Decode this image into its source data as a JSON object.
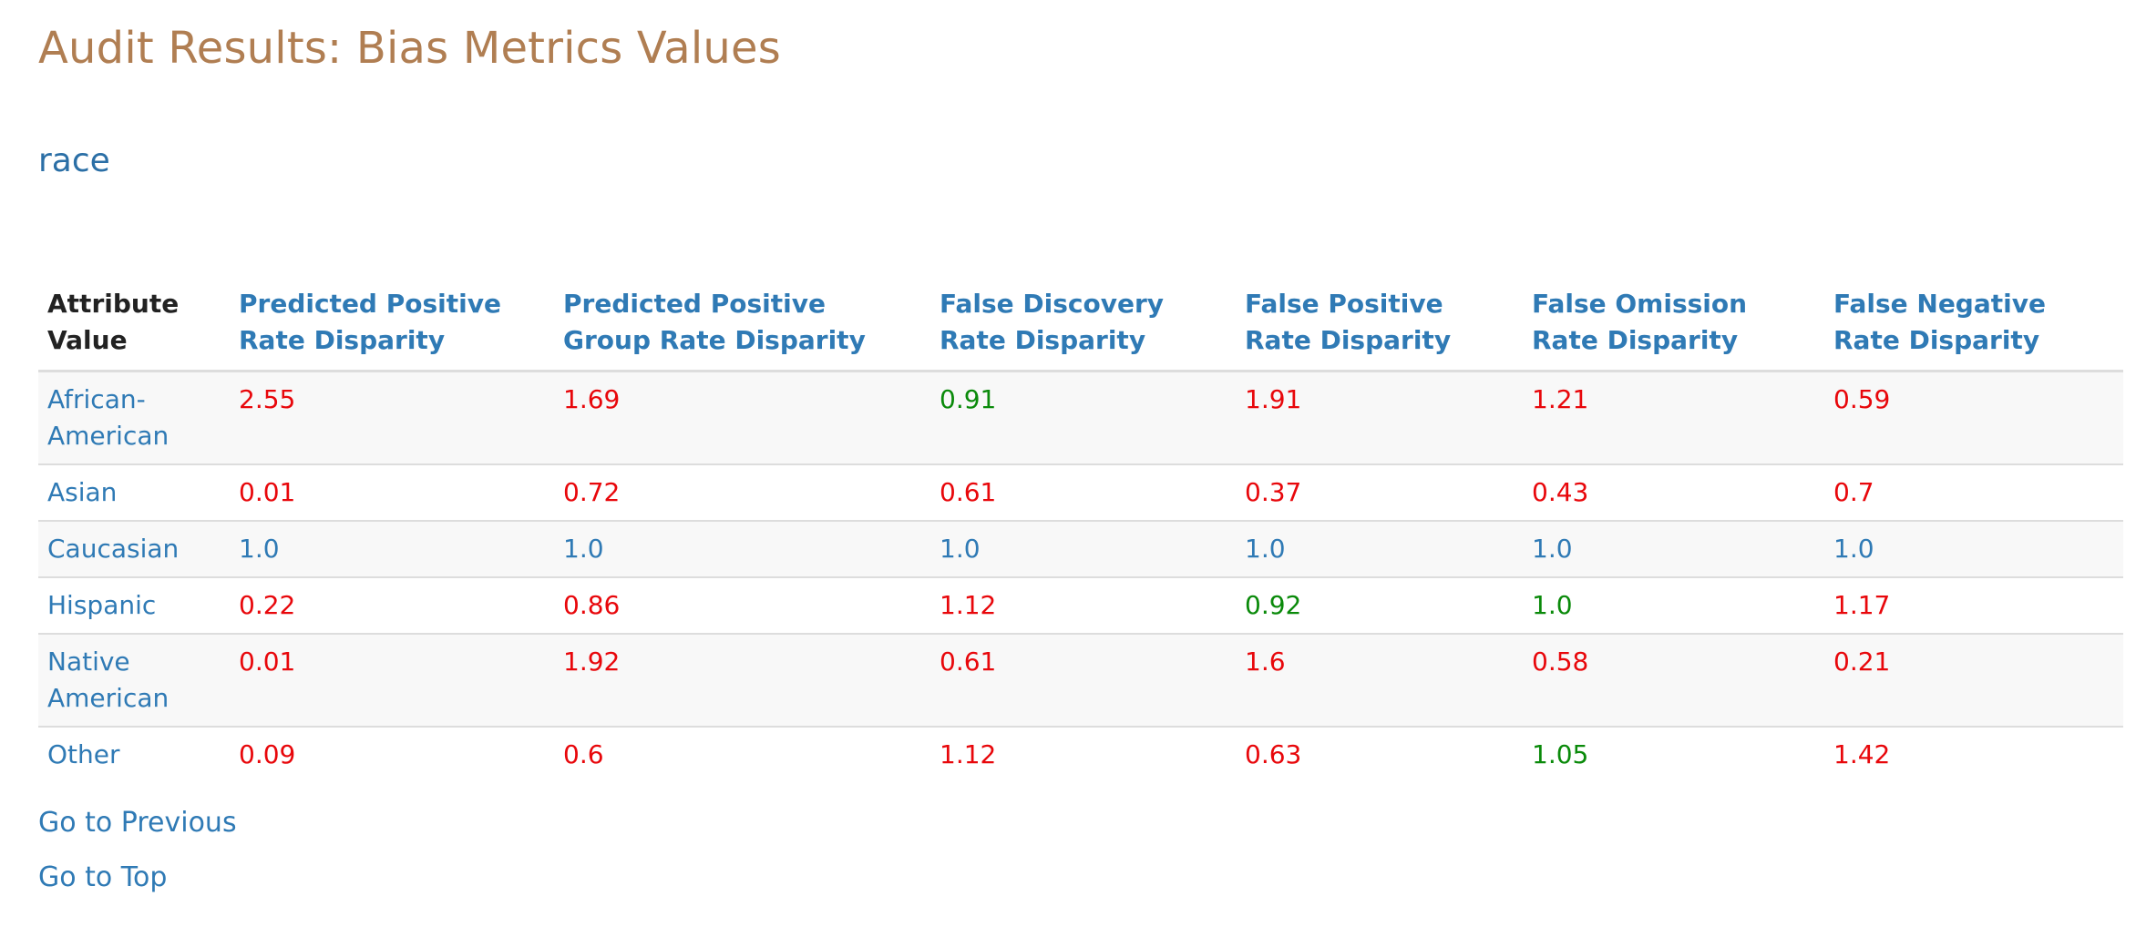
{
  "page": {
    "title": "Audit Results: Bias Metrics Values",
    "section": "race"
  },
  "table": {
    "headers": [
      "Attribute Value",
      "Predicted Positive Rate Disparity",
      "Predicted Positive Group Rate Disparity",
      "False Discovery Rate Disparity",
      "False Positive Rate Disparity",
      "False Omission Rate Disparity",
      "False Negative Rate Disparity"
    ],
    "rows": [
      {
        "attribute": "African-American",
        "values": [
          "2.55",
          "1.69",
          "0.91",
          "1.91",
          "1.21",
          "0.59"
        ],
        "status": [
          "red",
          "red",
          "green",
          "red",
          "red",
          "red"
        ]
      },
      {
        "attribute": "Asian",
        "values": [
          "0.01",
          "0.72",
          "0.61",
          "0.37",
          "0.43",
          "0.7"
        ],
        "status": [
          "red",
          "red",
          "red",
          "red",
          "red",
          "red"
        ]
      },
      {
        "attribute": "Caucasian",
        "values": [
          "1.0",
          "1.0",
          "1.0",
          "1.0",
          "1.0",
          "1.0"
        ],
        "status": [
          "blue",
          "blue",
          "blue",
          "blue",
          "blue",
          "blue"
        ]
      },
      {
        "attribute": "Hispanic",
        "values": [
          "0.22",
          "0.86",
          "1.12",
          "0.92",
          "1.0",
          "1.17"
        ],
        "status": [
          "red",
          "red",
          "red",
          "green",
          "green",
          "red"
        ]
      },
      {
        "attribute": "Native American",
        "values": [
          "0.01",
          "1.92",
          "0.61",
          "1.6",
          "0.58",
          "0.21"
        ],
        "status": [
          "red",
          "red",
          "red",
          "red",
          "red",
          "red"
        ]
      },
      {
        "attribute": "Other",
        "values": [
          "0.09",
          "0.6",
          "1.12",
          "0.63",
          "1.05",
          "1.42"
        ],
        "status": [
          "red",
          "red",
          "red",
          "red",
          "green",
          "red"
        ]
      }
    ]
  },
  "links": {
    "previous": "Go to Previous",
    "top": "Go to Top"
  },
  "colors": {
    "title": "#b07e52",
    "link": "#2f7ab5",
    "fail": "#e8070b",
    "pass": "#0a8a0a",
    "reference": "#2f7ab5"
  }
}
